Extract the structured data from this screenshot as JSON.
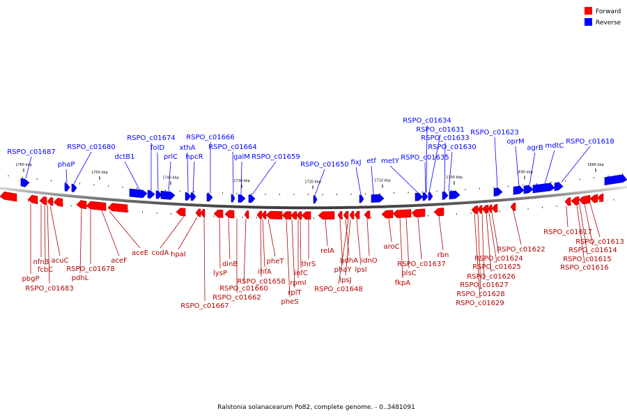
{
  "colors": {
    "forward": "#ff0000",
    "forward_dark": "#b00000",
    "reverse": "#0000ff",
    "reverse_dark": "#0000a8",
    "axis": "#555555",
    "tick": "#000000"
  },
  "legend": [
    {
      "label": "Forward",
      "color": "#ff0000"
    },
    {
      "label": "Reverse",
      "color": "#0000ff"
    }
  ],
  "caption": "Ralstonia solanacearum Po82, complete genome. - 0..3481091",
  "ticks": [
    "1760 kbp",
    "1750 kbp",
    "1740 kbp",
    "1730 kbp",
    "1720 kbp",
    "1710 kbp",
    "1700 kbp",
    "1690 kbp",
    "1680 kbp"
  ],
  "reverse_labels": [
    "RSPO_c01687",
    "phaP",
    "RSPO_c01680",
    "dctB1",
    "RSPO_c01674",
    "folD",
    "prlC",
    "xthA",
    "hpcR",
    "RSPO_c01666",
    "RSPO_c01664",
    "galM",
    "RSPO_c01659",
    "RSPO_c01650",
    "fixJ",
    "etf",
    "metY",
    "RSPO_c01635",
    "RSPO_c01634",
    "RSPO_c01631",
    "RSPO_c01633",
    "RSPO_c01630",
    "RSPO_c01623",
    "oprM",
    "agrB",
    "mdtC",
    "RSPO_c01618"
  ],
  "forward_labels": [
    "pbgP",
    "nfnB",
    "fcbC",
    "RSPO_c01683",
    "acuC",
    "pdhL",
    "RSPO_c01678",
    "aceF",
    "aceE",
    "codA",
    "hpaI",
    "RSPO_c01667",
    "lysP",
    "dinB",
    "RSPO_c01662",
    "RSPO_c01660",
    "RSPO_c01658",
    "ihfA",
    "pheT",
    "pheS",
    "rplT",
    "rpmI",
    "infC",
    "thrS",
    "relA",
    "phaY",
    "bdhA",
    "RSPO_c01648",
    "lpsJ",
    "lpsI",
    "idnO",
    "aroC",
    "fkpA",
    "plsC",
    "RSPO_c01637",
    "rbn",
    "RSPO_c01629",
    "RSPO_c01628",
    "RSPO_c01627",
    "RSPO_c01626",
    "RSPO_c01625",
    "RSPO_c01624",
    "RSPO_c01622",
    "RSPO_c01617",
    "RSPO_c01616",
    "RSPO_c01615",
    "RSPO_c01614",
    "RSPO_c01613"
  ]
}
